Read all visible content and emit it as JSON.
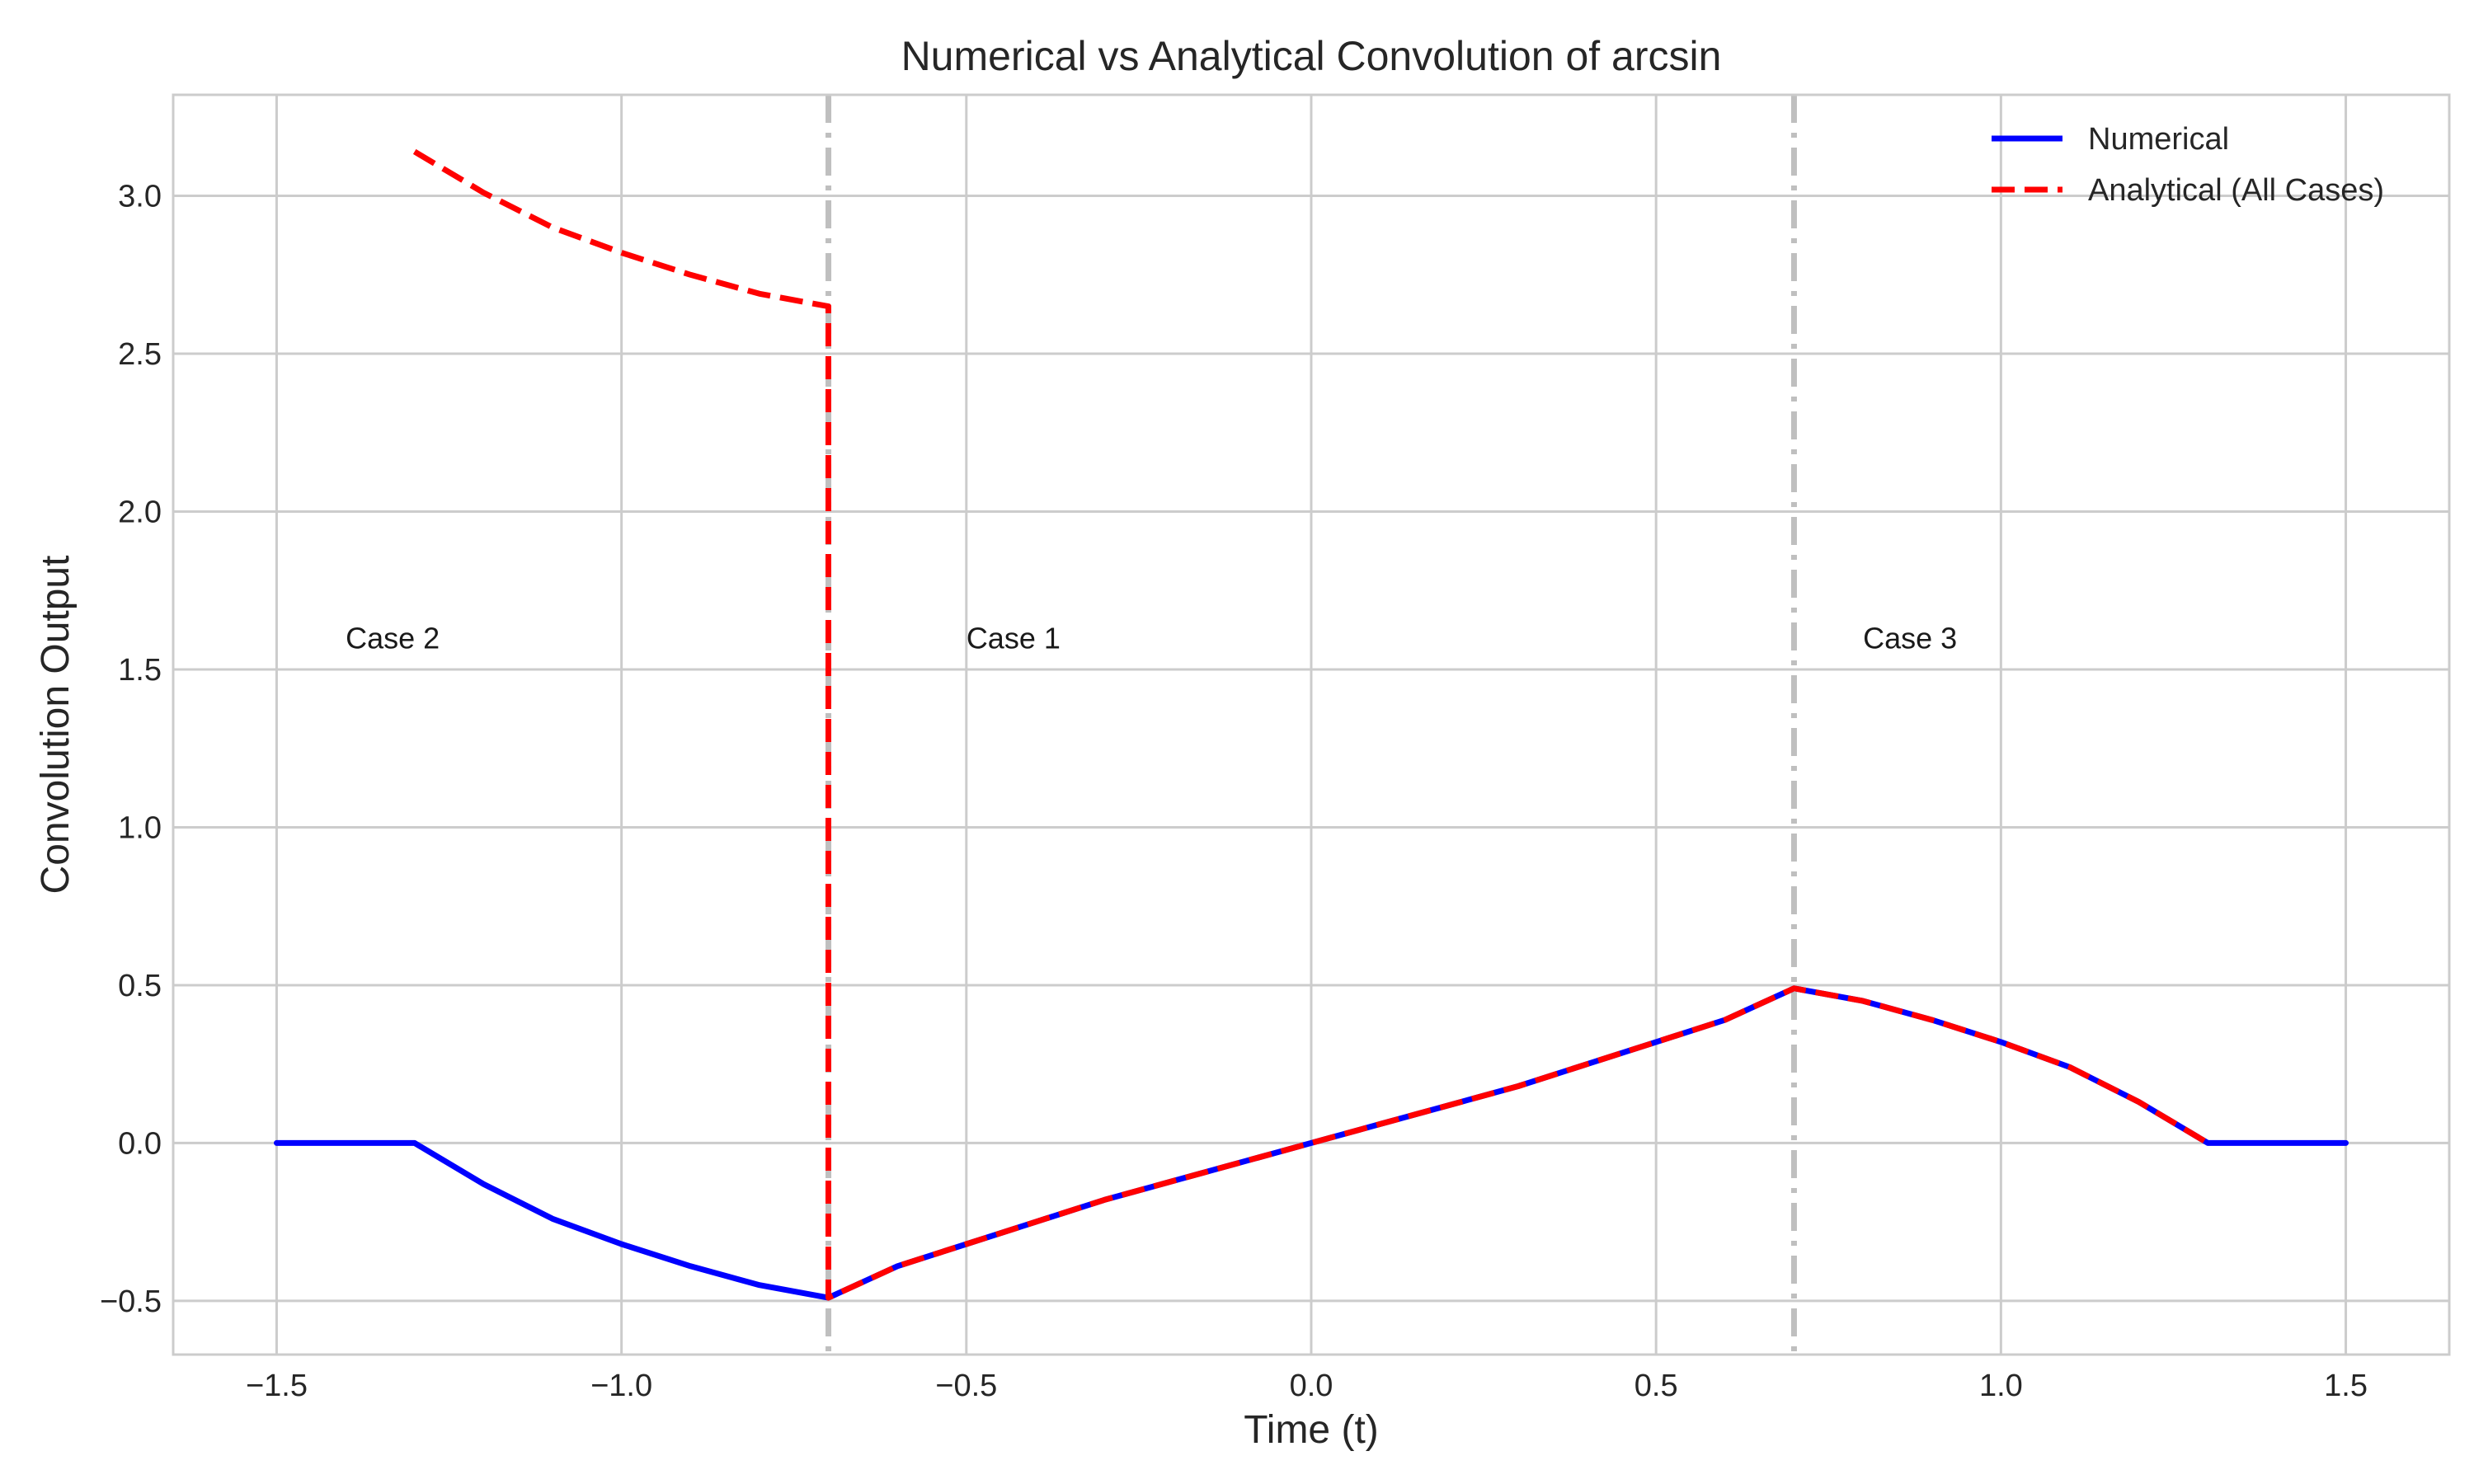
{
  "chart_data": {
    "type": "line",
    "title": "Numerical vs Analytical Convolution of arcsin",
    "xlabel": "Time (t)",
    "ylabel": "Convolution Output",
    "xlim": [
      -1.65,
      1.65
    ],
    "ylim": [
      -0.67,
      3.32
    ],
    "xticks": [
      -1.5,
      -1.0,
      -0.5,
      0.0,
      0.5,
      1.0,
      1.5
    ],
    "xtick_labels": [
      "−1.5",
      "−1.0",
      "−0.5",
      "0.0",
      "0.5",
      "1.0",
      "1.5"
    ],
    "yticks": [
      -0.5,
      0.0,
      0.5,
      1.0,
      1.5,
      2.0,
      2.5,
      3.0
    ],
    "ytick_labels": [
      "−0.5",
      "0.0",
      "0.5",
      "1.0",
      "1.5",
      "2.0",
      "2.5",
      "3.0"
    ],
    "grid": true,
    "legend_position": "top-right",
    "vlines": [
      -0.7,
      0.7
    ],
    "annotations": [
      {
        "text": "Case 2",
        "x": -1.4,
        "y": 1.6
      },
      {
        "text": "Case 1",
        "x": -0.5,
        "y": 1.6
      },
      {
        "text": "Case 3",
        "x": 0.8,
        "y": 1.6
      }
    ],
    "series": [
      {
        "name": "Numerical",
        "color": "#0000ff",
        "style": "solid",
        "x": [
          -1.5,
          -1.3,
          -1.2,
          -1.1,
          -1.0,
          -0.9,
          -0.8,
          -0.7,
          -0.6,
          -0.5,
          -0.4,
          -0.3,
          -0.2,
          -0.1,
          0.0,
          0.1,
          0.2,
          0.3,
          0.4,
          0.5,
          0.6,
          0.7,
          0.8,
          0.9,
          1.0,
          1.1,
          1.2,
          1.3,
          1.5
        ],
        "y": [
          0.0,
          0.0,
          -0.13,
          -0.24,
          -0.32,
          -0.39,
          -0.45,
          -0.49,
          -0.39,
          -0.32,
          -0.25,
          -0.18,
          -0.12,
          -0.06,
          0.0,
          0.06,
          0.12,
          0.18,
          0.25,
          0.32,
          0.39,
          0.49,
          0.45,
          0.39,
          0.32,
          0.24,
          0.13,
          0.0,
          0.0
        ]
      },
      {
        "name": "Analytical (All Cases)",
        "color": "#ff0000",
        "style": "dashed",
        "x": [
          -1.3,
          -1.2,
          -1.1,
          -1.0,
          -0.9,
          -0.8,
          -0.7,
          -0.7,
          -0.6,
          -0.5,
          -0.4,
          -0.3,
          -0.2,
          -0.1,
          0.0,
          0.1,
          0.2,
          0.3,
          0.4,
          0.5,
          0.6,
          0.7,
          0.8,
          0.9,
          1.0,
          1.1,
          1.2,
          1.3
        ],
        "y": [
          3.14,
          3.01,
          2.9,
          2.82,
          2.75,
          2.69,
          2.65,
          -0.49,
          -0.39,
          -0.32,
          -0.25,
          -0.18,
          -0.12,
          -0.06,
          0.0,
          0.06,
          0.12,
          0.18,
          0.25,
          0.32,
          0.39,
          0.49,
          0.45,
          0.39,
          0.32,
          0.24,
          0.13,
          0.0
        ]
      }
    ]
  }
}
